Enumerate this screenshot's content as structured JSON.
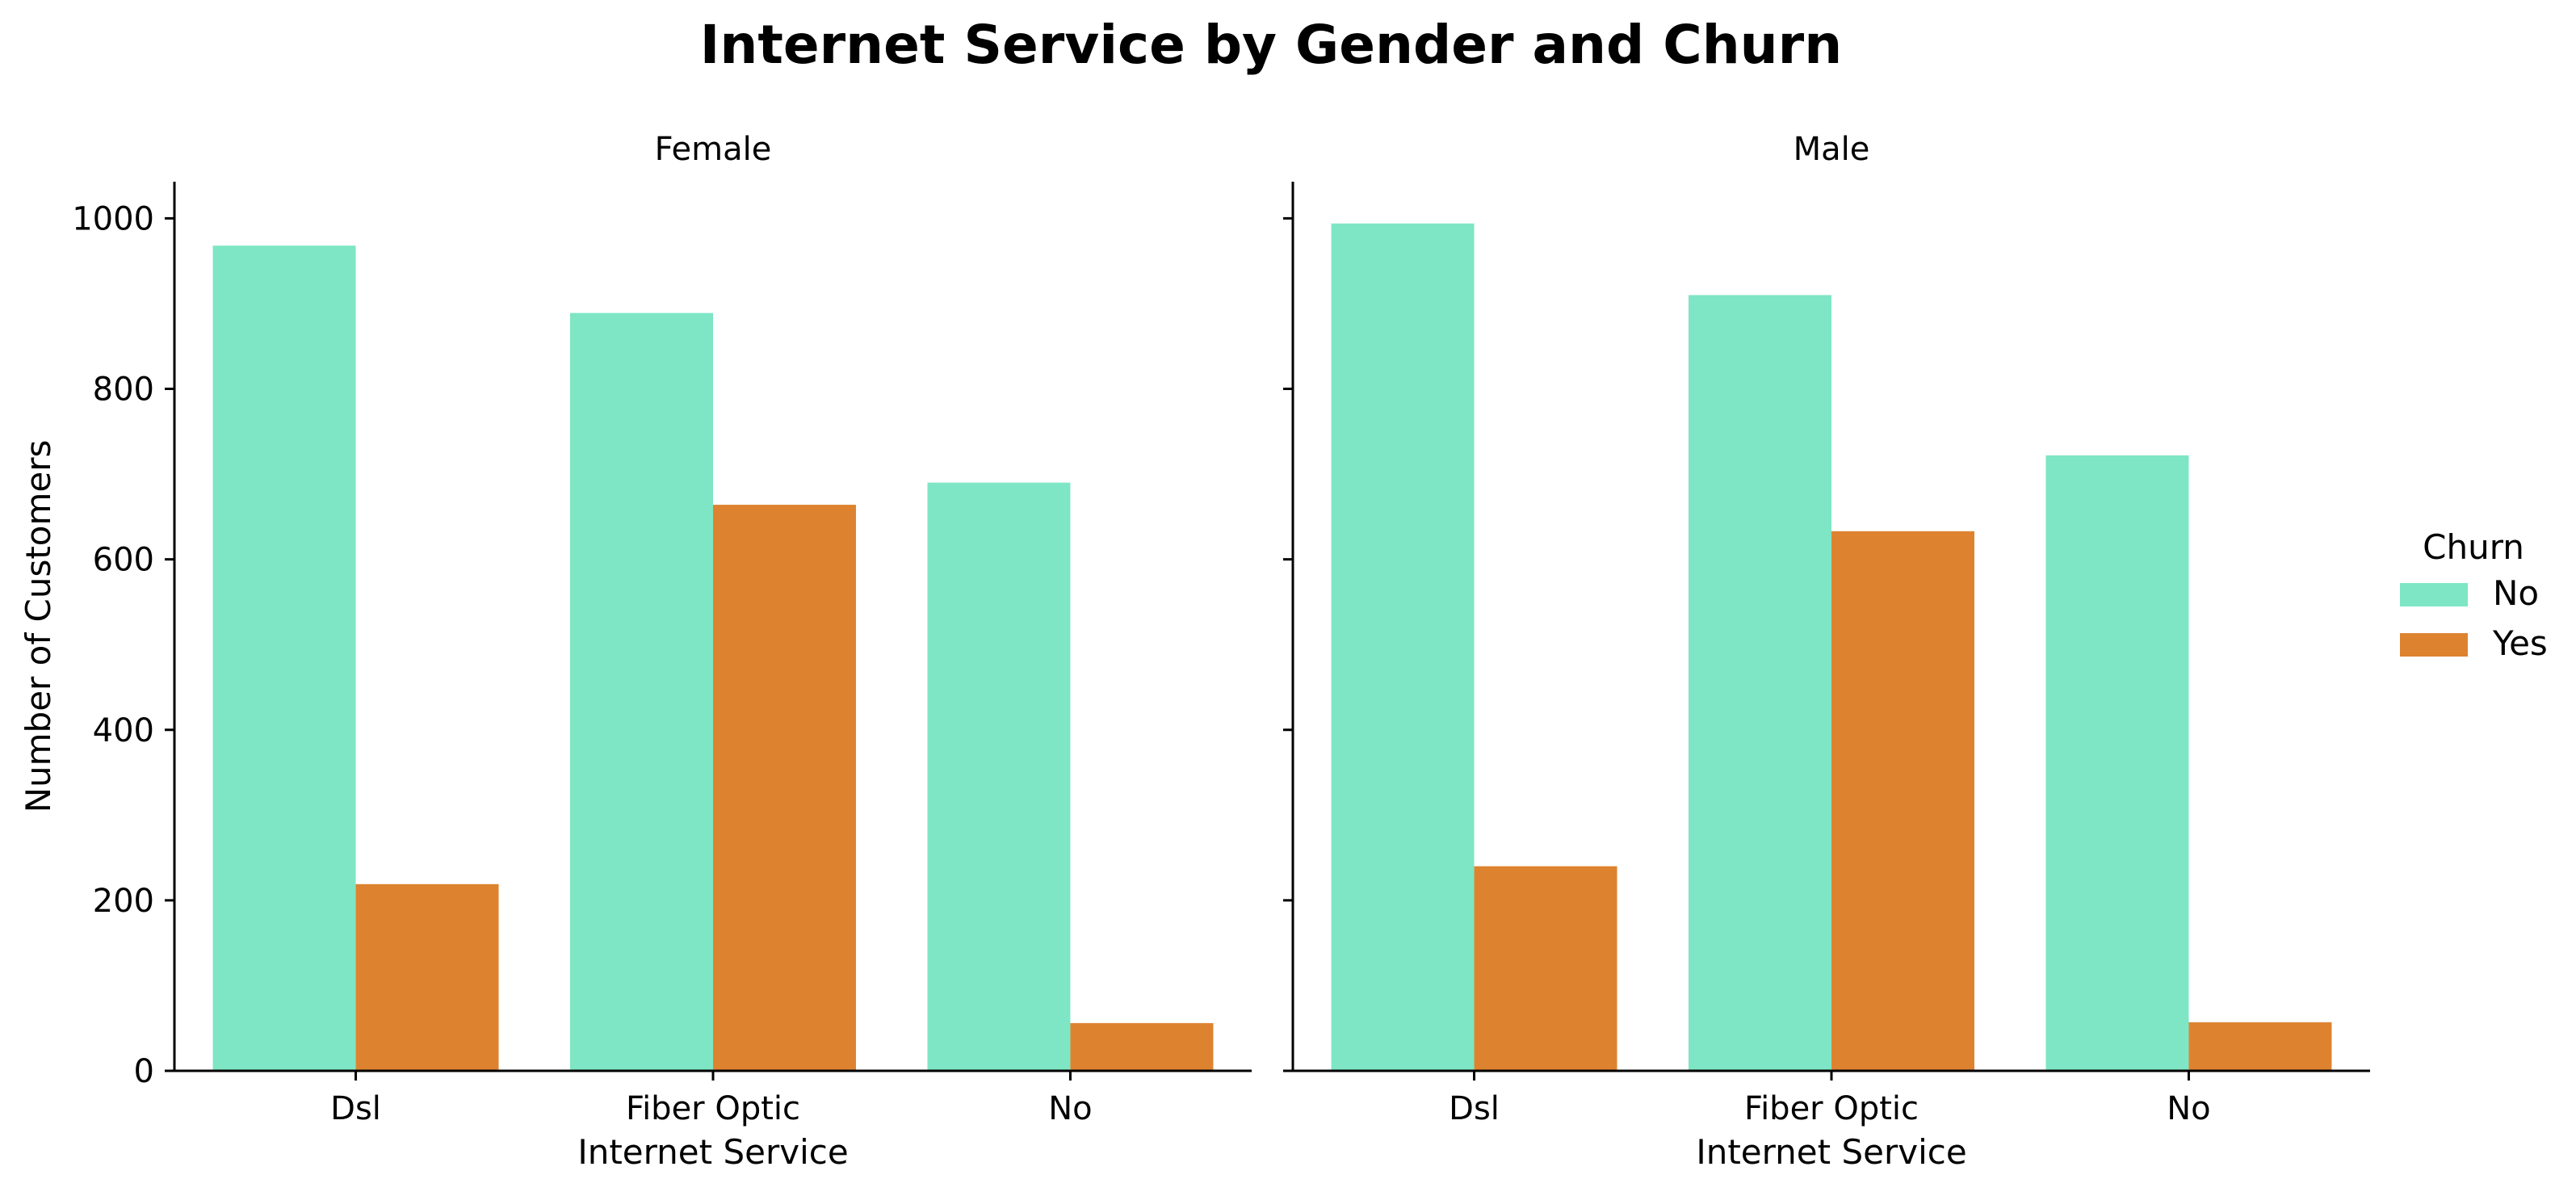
{
  "title": "Internet Service by Gender and Churn",
  "chart_data": {
    "type": "bar",
    "title": "Internet Service by Gender and Churn",
    "xlabel": "Internet Service",
    "ylabel": "Number of Customers",
    "ylim": [
      0,
      1043
    ],
    "yticks": [
      0,
      200,
      400,
      600,
      800,
      1000
    ],
    "categories": [
      "Dsl",
      "Fiber Optic",
      "No"
    ],
    "legend": {
      "title": "Churn",
      "placement": "right",
      "entries": [
        "No",
        "Yes"
      ]
    },
    "colors": {
      "No": "#7ee6c4",
      "Yes": "#dd8330"
    },
    "grid": false,
    "panels": [
      {
        "name": "Female",
        "series": [
          {
            "name": "No",
            "values": [
              968,
              889,
              690
            ]
          },
          {
            "name": "Yes",
            "values": [
              219,
              664,
              56
            ]
          }
        ]
      },
      {
        "name": "Male",
        "series": [
          {
            "name": "No",
            "values": [
              994,
              910,
              722
            ]
          },
          {
            "name": "Yes",
            "values": [
              240,
              633,
              57
            ]
          }
        ]
      }
    ]
  }
}
